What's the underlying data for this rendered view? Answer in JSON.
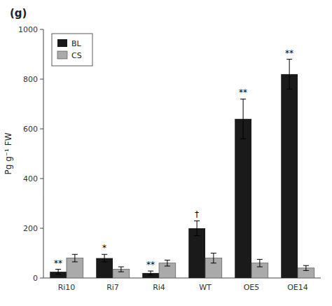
{
  "chart_data": {
    "type": "bar",
    "title": "(g)",
    "categories": [
      "Ri10",
      "Ri7",
      "Ri4",
      "WT",
      "OE5",
      "OE14"
    ],
    "series": [
      {
        "name": "BL",
        "color": "#1a1a1a",
        "values": [
          25,
          80,
          20,
          200,
          640,
          820
        ],
        "errors": [
          10,
          15,
          8,
          30,
          80,
          60
        ],
        "annotations": [
          "**",
          "*",
          "**",
          "†",
          "**",
          "**"
        ]
      },
      {
        "name": "CS",
        "color": "#aaaaaa",
        "values": [
          80,
          35,
          60,
          80,
          60,
          40
        ],
        "errors": [
          15,
          10,
          12,
          20,
          15,
          10
        ]
      }
    ],
    "ylabel": "Pg g⁻¹ FW",
    "ylim": [
      0,
      1000
    ],
    "yticks": [
      0,
      200,
      400,
      600,
      800,
      1000
    ],
    "legend": "upper left"
  }
}
